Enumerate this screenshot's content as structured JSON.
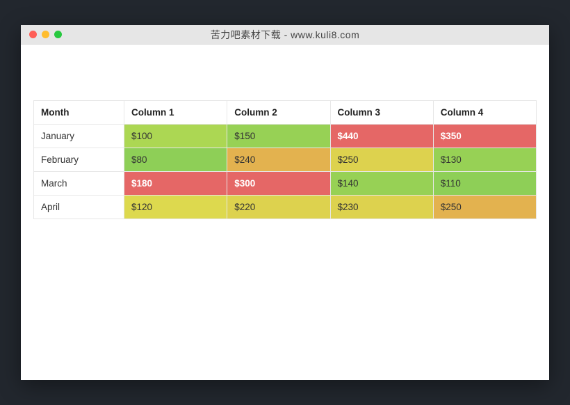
{
  "window": {
    "title": "苦力吧素材下载 - www.kuli8.com",
    "traffic_colors": [
      "#ff5f57",
      "#ffbd2e",
      "#28c940"
    ],
    "titlebar_bg": "#e6e6e6",
    "page_bg": "#22272e"
  },
  "table": {
    "type": "table",
    "border_color": "#e7e7e7",
    "header_bg": "#ffffff",
    "header_font_weight": "700",
    "columns": [
      "Month",
      "Column 1",
      "Column 2",
      "Column 3",
      "Column 4"
    ],
    "rows": [
      {
        "label": "January",
        "cells": [
          {
            "text": "$100",
            "bg": "#acd753",
            "fg": "#333333",
            "bold": false
          },
          {
            "text": "$150",
            "bg": "#97d155",
            "fg": "#333333",
            "bold": false
          },
          {
            "text": "$440",
            "bg": "#e56766",
            "fg": "#ffffff",
            "bold": true
          },
          {
            "text": "$350",
            "bg": "#e56766",
            "fg": "#ffffff",
            "bold": true
          }
        ]
      },
      {
        "label": "February",
        "cells": [
          {
            "text": "$80",
            "bg": "#8ecf57",
            "fg": "#333333",
            "bold": false
          },
          {
            "text": "$240",
            "bg": "#e3b24f",
            "fg": "#333333",
            "bold": false
          },
          {
            "text": "$250",
            "bg": "#ddd24e",
            "fg": "#333333",
            "bold": false
          },
          {
            "text": "$130",
            "bg": "#97d155",
            "fg": "#333333",
            "bold": false
          }
        ]
      },
      {
        "label": "March",
        "cells": [
          {
            "text": "$180",
            "bg": "#e56766",
            "fg": "#ffffff",
            "bold": true
          },
          {
            "text": "$300",
            "bg": "#e56766",
            "fg": "#ffffff",
            "bold": true
          },
          {
            "text": "$140",
            "bg": "#97d155",
            "fg": "#333333",
            "bold": false
          },
          {
            "text": "$110",
            "bg": "#8ecf57",
            "fg": "#333333",
            "bold": false
          }
        ]
      },
      {
        "label": "April",
        "cells": [
          {
            "text": "$120",
            "bg": "#ddd94e",
            "fg": "#333333",
            "bold": false
          },
          {
            "text": "$220",
            "bg": "#ddd24e",
            "fg": "#333333",
            "bold": false
          },
          {
            "text": "$230",
            "bg": "#ddd24e",
            "fg": "#333333",
            "bold": false
          },
          {
            "text": "$250",
            "bg": "#e3b24f",
            "fg": "#333333",
            "bold": false
          }
        ]
      }
    ]
  }
}
